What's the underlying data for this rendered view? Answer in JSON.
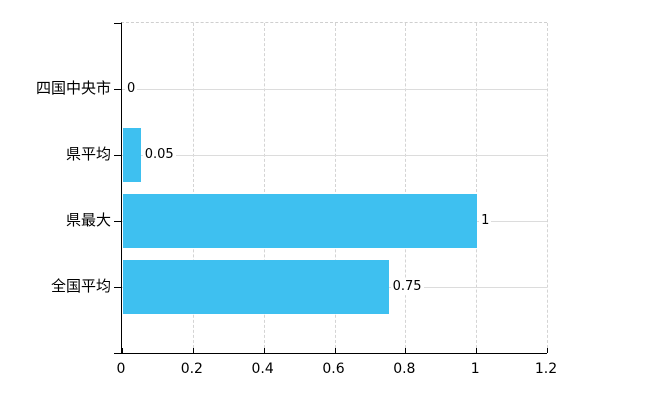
{
  "chart_data": {
    "type": "bar",
    "orientation": "horizontal",
    "title": "",
    "xlabel": "",
    "ylabel": "",
    "categories": [
      "四国中央市",
      "県平均",
      "県最大",
      "全国平均"
    ],
    "values": [
      0,
      0.05,
      1,
      0.75
    ],
    "value_labels": [
      "0",
      "0.05",
      "1",
      "0.75"
    ],
    "xlim": [
      0,
      1.2
    ],
    "x_ticks": [
      0,
      0.2,
      0.4,
      0.6,
      0.8,
      1,
      1.2
    ],
    "x_tick_labels": [
      "0",
      "0.2",
      "0.4",
      "0.6",
      "0.8",
      "1",
      "1.2"
    ],
    "grid": true,
    "legend": "none",
    "bar_color": "#3EC0F0",
    "axis_color": "#000000",
    "vertical_gridline_color": "#d4d4d4",
    "horizontal_gridline_color": "#dcdcdc",
    "background_color": "#ffffff"
  }
}
